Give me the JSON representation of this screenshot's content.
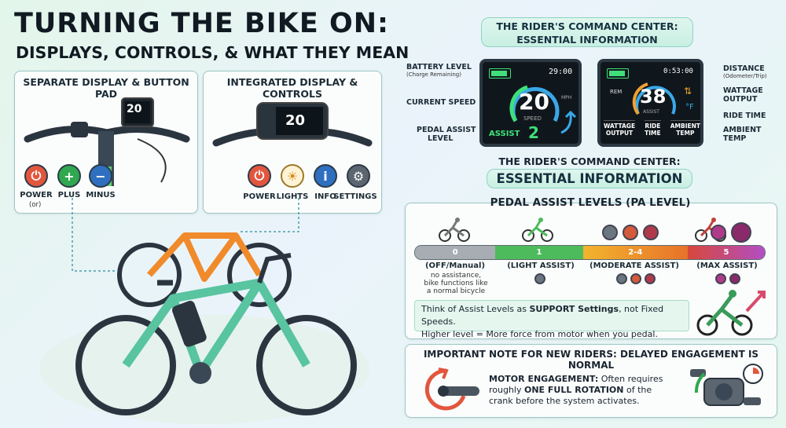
{
  "header": {
    "title": "TURNING THE BIKE ON:",
    "subtitle": "DISPLAYS, CONTROLS, & WHAT THEY MEAN"
  },
  "separate_panel": {
    "title": "SEPARATE DISPLAY & BUTTON PAD",
    "display_speed": "20",
    "buttons": [
      {
        "label": "POWER",
        "note": "(or)",
        "color": "#e2563d"
      },
      {
        "label": "PLUS",
        "symbol": "+",
        "color": "#2fa84f"
      },
      {
        "label": "MINUS",
        "symbol": "−",
        "color": "#2f6fc0"
      }
    ]
  },
  "integrated_panel": {
    "title": "INTEGRATED DISPLAY & CONTROLS",
    "display_speed": "20",
    "buttons": [
      {
        "label": "POWER",
        "color": "#e2563d"
      },
      {
        "label": "LIGHTS",
        "color": "#f0b531"
      },
      {
        "label": "INFO",
        "symbol": "i",
        "color": "#2f6fc0"
      },
      {
        "label": "SETTINGS",
        "color": "#5b6670"
      }
    ]
  },
  "command_center": {
    "title_line1": "THE RIDER'S COMMAND CENTER:",
    "title_line2": "ESSENTIAL INFORMATION",
    "left_labels": [
      {
        "label": "BATTERY LEVEL",
        "sub": "(Charge Remaining)"
      },
      {
        "label": "CURRENT SPEED"
      },
      {
        "label": "PEDAL ASSIST",
        "label2": "LEVEL"
      }
    ],
    "right_labels": [
      {
        "label": "DISTANCE",
        "sub": "(Odometer/Trip)"
      },
      {
        "label": "WATTAGE",
        "label2": "OUTPUT"
      },
      {
        "label": "RIDE TIME"
      },
      {
        "label": "AMBIENT",
        "label2": "TEMP"
      }
    ],
    "display1": {
      "time": "29:00",
      "speed": "20",
      "speed_unit": "SPEED",
      "assist_label": "ASSIST",
      "assist_value": "2",
      "unit": "MPH"
    },
    "display2": {
      "distance": "0:53:00",
      "rem": "REM",
      "speed": "38",
      "assist_label": "ASSIST",
      "cells": [
        "WATTAGE OUTPUT",
        "RIDE TIME",
        "AMBIENT TEMP"
      ],
      "cells_line1": [
        "WATTAGE",
        "RIDE",
        "AMBIENT"
      ],
      "cells_line2": [
        "OUTPUT",
        "TIME",
        "TEMP"
      ]
    }
  },
  "command_center_2": {
    "title_line1": "THE RIDER'S COMMAND CENTER:",
    "title_line2": "ESSENTIAL INFORMATION"
  },
  "pedal_assist": {
    "title": "PEDAL ASSIST LEVELS (PA LEVEL)",
    "levels": [
      {
        "num": "0",
        "name": "(OFF/Manual)",
        "desc1": "no assistance,",
        "desc2": "bike functions like",
        "desc3": "a normal bicycle",
        "color": "#a7adb3"
      },
      {
        "num": "1",
        "name": "(LIGHT ASSIST)",
        "color": "#4dbb5b"
      },
      {
        "num": "2-4",
        "name": "(MODERATE ASSIST)",
        "color": "#f29a2e"
      },
      {
        "num": "5",
        "name": "(MAX ASSIST)",
        "color": "#b24ec4"
      }
    ],
    "tip_prefix": "Think of Assist Levels as ",
    "tip_bold": "SUPPORT Settings",
    "tip_suffix": ", not Fixed Speeds.",
    "tip_line2": "Higher level = More force from motor when you pedal."
  },
  "note": {
    "title": "IMPORTANT NOTE FOR NEW RIDERS: DELAYED ENGAGEMENT IS NORMAL",
    "bold1": "MOTOR ENGAGEMENT:",
    "text1": " Often requires",
    "text2": "roughly ",
    "bold2": "ONE FULL ROTATION",
    "text3": " of the",
    "text4": "crank before the system activates."
  },
  "colors": {
    "accent_teal": "#8fd3c4",
    "screen_green": "#3fe07a",
    "screen_blue": "#3aa8e8"
  }
}
